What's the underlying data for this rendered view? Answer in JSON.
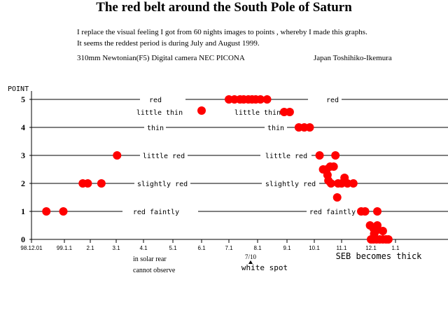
{
  "title": "The red belt around the South Pole of Saturn",
  "description_lines": [
    "I replace the visual feeling  I got from 60 nights images to points  ,  whereby  I made this graphs.",
    "It seems the reddest period is during   July and August 1999."
  ],
  "equipment": "310mm Newtonian(F5)    Digital camera NEC PICONA",
  "author": "Japan     Toshihiko-Ikemura",
  "chart_data": {
    "type": "scatter",
    "ylabel": "POINT",
    "ylim": [
      0,
      5
    ],
    "y_ticks": [
      0,
      1,
      2,
      3,
      4,
      5
    ],
    "x_ticks": [
      "98.12.01",
      "99.1.1",
      "2.1",
      "3.1",
      "4.1",
      "5.1",
      "6.1",
      "7.1",
      "8.1",
      "9.1",
      "10.1",
      "11.1",
      "12.1",
      "1.1"
    ],
    "x_tick_dates": [
      "1998-12-01",
      "1999-01-01",
      "1999-02-01",
      "1999-03-01",
      "1999-04-01",
      "1999-05-01",
      "1999-06-01",
      "1999-07-01",
      "1999-08-01",
      "1999-09-01",
      "1999-10-01",
      "1999-11-01",
      "1999-12-01",
      "2000-01-01"
    ],
    "level_labels": [
      {
        "level": 5,
        "texts": [
          "red",
          "red"
        ]
      },
      {
        "level": 4.5,
        "texts": [
          "little thin",
          "little thin"
        ]
      },
      {
        "level": 4,
        "texts": [
          "thin",
          "thin"
        ]
      },
      {
        "level": 3,
        "texts": [
          "little red",
          "little red"
        ]
      },
      {
        "level": 2,
        "texts": [
          "slightly red",
          "slightly red"
        ]
      },
      {
        "level": 1,
        "texts": [
          "red faintly",
          "red faintly"
        ]
      }
    ],
    "points": [
      {
        "date": "1998-12-15",
        "y": 1
      },
      {
        "date": "1998-12-31",
        "y": 1
      },
      {
        "date": "1999-01-23",
        "y": 2
      },
      {
        "date": "1999-01-29",
        "y": 2
      },
      {
        "date": "1999-02-13",
        "y": 2
      },
      {
        "date": "1999-03-02",
        "y": 3
      },
      {
        "date": "1999-06-01",
        "y": 4.6
      },
      {
        "date": "1999-07-01",
        "y": 5
      },
      {
        "date": "1999-07-07",
        "y": 5
      },
      {
        "date": "1999-07-13",
        "y": 5
      },
      {
        "date": "1999-07-17",
        "y": 5
      },
      {
        "date": "1999-07-22",
        "y": 5
      },
      {
        "date": "1999-07-26",
        "y": 5
      },
      {
        "date": "1999-07-30",
        "y": 5
      },
      {
        "date": "1999-08-04",
        "y": 5
      },
      {
        "date": "1999-08-11",
        "y": 5
      },
      {
        "date": "1999-08-29",
        "y": 4.55
      },
      {
        "date": "1999-09-04",
        "y": 4.55
      },
      {
        "date": "1999-09-14",
        "y": 4
      },
      {
        "date": "1999-09-20",
        "y": 4
      },
      {
        "date": "1999-09-26",
        "y": 4
      },
      {
        "date": "1999-10-07",
        "y": 3
      },
      {
        "date": "1999-10-25",
        "y": 3
      },
      {
        "date": "1999-10-11",
        "y": 2.5
      },
      {
        "date": "1999-10-15",
        "y": 2.5
      },
      {
        "date": "1999-10-19",
        "y": 2.6
      },
      {
        "date": "1999-10-23",
        "y": 2.6
      },
      {
        "date": "1999-10-16",
        "y": 2.3
      },
      {
        "date": "1999-10-17",
        "y": 2.1
      },
      {
        "date": "1999-10-20",
        "y": 2
      },
      {
        "date": "1999-10-28",
        "y": 2
      },
      {
        "date": "1999-11-01",
        "y": 2
      },
      {
        "date": "1999-11-04",
        "y": 2.2
      },
      {
        "date": "1999-11-07",
        "y": 2
      },
      {
        "date": "1999-11-13",
        "y": 2
      },
      {
        "date": "1999-10-27",
        "y": 1.5
      },
      {
        "date": "1999-11-21",
        "y": 1
      },
      {
        "date": "1999-11-25",
        "y": 1
      },
      {
        "date": "1999-12-09",
        "y": 1
      },
      {
        "date": "1999-11-30",
        "y": 0.5
      },
      {
        "date": "1999-12-04",
        "y": 0.4
      },
      {
        "date": "1999-12-07",
        "y": 0.3
      },
      {
        "date": "1999-12-09",
        "y": 0.5
      },
      {
        "date": "1999-12-05",
        "y": 0.2
      },
      {
        "date": "1999-12-01",
        "y": 0
      },
      {
        "date": "1999-12-04",
        "y": 0
      },
      {
        "date": "1999-12-08",
        "y": 0
      },
      {
        "date": "1999-12-12",
        "y": 0
      },
      {
        "date": "1999-12-16",
        "y": 0.3
      },
      {
        "date": "1999-12-16",
        "y": 0
      },
      {
        "date": "1999-12-20",
        "y": 0
      },
      {
        "date": "1999-12-23",
        "y": 0
      }
    ],
    "annotations": {
      "solar_rear": [
        "in solar rear",
        "cannot observe"
      ],
      "white_spot_date": "7/10",
      "white_spot": "white spot",
      "seb_thick": "SEB becomes thick"
    },
    "colors": {
      "point": "#ff0000",
      "line": "#000000"
    },
    "grid": false
  }
}
